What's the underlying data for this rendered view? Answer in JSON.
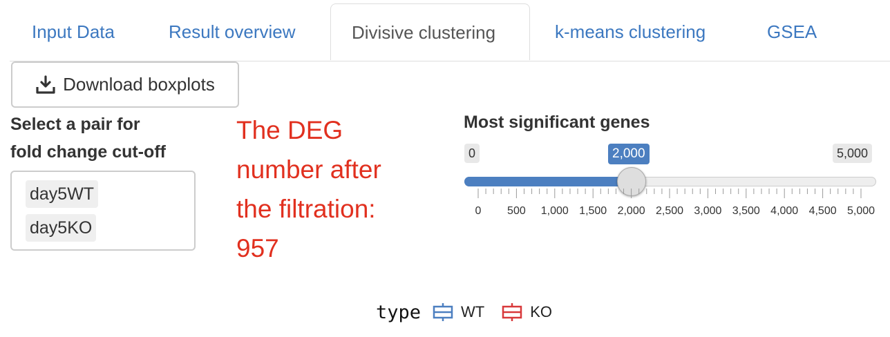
{
  "tabs": [
    {
      "label": "Input Data"
    },
    {
      "label": "Result overview"
    },
    {
      "label": "Divisive clustering"
    },
    {
      "label": "k-means clustering"
    },
    {
      "label": "GSEA"
    }
  ],
  "download_button": {
    "label": "Download boxplots",
    "icon": "download-icon"
  },
  "pair_select": {
    "label": "Select a pair for fold change cut-off",
    "label_line1": "Select a pair for",
    "label_line2": "fold change cut-off",
    "items": [
      "day5WT",
      "day5KO"
    ]
  },
  "deg_message": {
    "line1": "The DEG",
    "line2": "number after",
    "line3": "the filtration:",
    "line4": "957",
    "color": "#e1301f"
  },
  "slider": {
    "label": "Most significant genes",
    "min_label": "0",
    "max_label": "5,000",
    "value_label": "2,000",
    "min": 0,
    "max": 5000,
    "value": 2000,
    "ticks": [
      "0",
      "500",
      "1,000",
      "1,500",
      "2,000",
      "2,500",
      "3,000",
      "3,500",
      "4,000",
      "4,500",
      "5,000"
    ],
    "accent": "#4c7fc0"
  },
  "legend": {
    "title": "type",
    "items": [
      {
        "label": "WT",
        "color": "#4c7fc0"
      },
      {
        "label": "KO",
        "color": "#d8383a"
      }
    ]
  }
}
